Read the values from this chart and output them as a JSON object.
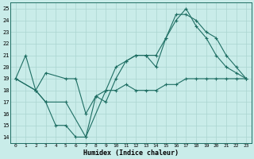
{
  "xlabel": "Humidex (Indice chaleur)",
  "bg_color": "#c9ece9",
  "grid_color": "#aad4d0",
  "line_color": "#1e6e63",
  "xlim": [
    -0.5,
    23.5
  ],
  "ylim": [
    13.5,
    25.5
  ],
  "xticks": [
    0,
    1,
    2,
    3,
    4,
    5,
    6,
    7,
    8,
    9,
    10,
    11,
    12,
    13,
    14,
    15,
    16,
    17,
    18,
    19,
    20,
    21,
    22,
    23
  ],
  "yticks": [
    14,
    15,
    16,
    17,
    18,
    19,
    20,
    21,
    22,
    23,
    24,
    25
  ],
  "line1_x": [
    0,
    1,
    2,
    3,
    4,
    5,
    6,
    7,
    8,
    9,
    10,
    11,
    12,
    13,
    14,
    15,
    16,
    17,
    18,
    19,
    20,
    21,
    22,
    23
  ],
  "line1_y": [
    19,
    21,
    18,
    17,
    15,
    15,
    14,
    14,
    17.5,
    17,
    19,
    20.5,
    21,
    21,
    20,
    22.5,
    24,
    25,
    23.5,
    22.5,
    21,
    20,
    19.5,
    19
  ],
  "line2_x": [
    0,
    2,
    3,
    5,
    6,
    7,
    8,
    9,
    10,
    11,
    12,
    13,
    14,
    15,
    16,
    17,
    18,
    19,
    20,
    21,
    22,
    23
  ],
  "line2_y": [
    19,
    18,
    19.5,
    19,
    19,
    16,
    17.5,
    18,
    18,
    18.5,
    18,
    18,
    18,
    18.5,
    18.5,
    19,
    19,
    19,
    19,
    19,
    19,
    19
  ],
  "line3_x": [
    0,
    2,
    3,
    5,
    7,
    9,
    10,
    11,
    12,
    13,
    14,
    15,
    16,
    17,
    18,
    19,
    20,
    21,
    22,
    23
  ],
  "line3_y": [
    19,
    18,
    17,
    17,
    14,
    18,
    20,
    20.5,
    21,
    21,
    21,
    22.5,
    24.5,
    24.5,
    24,
    23,
    22.5,
    21,
    20,
    19
  ]
}
